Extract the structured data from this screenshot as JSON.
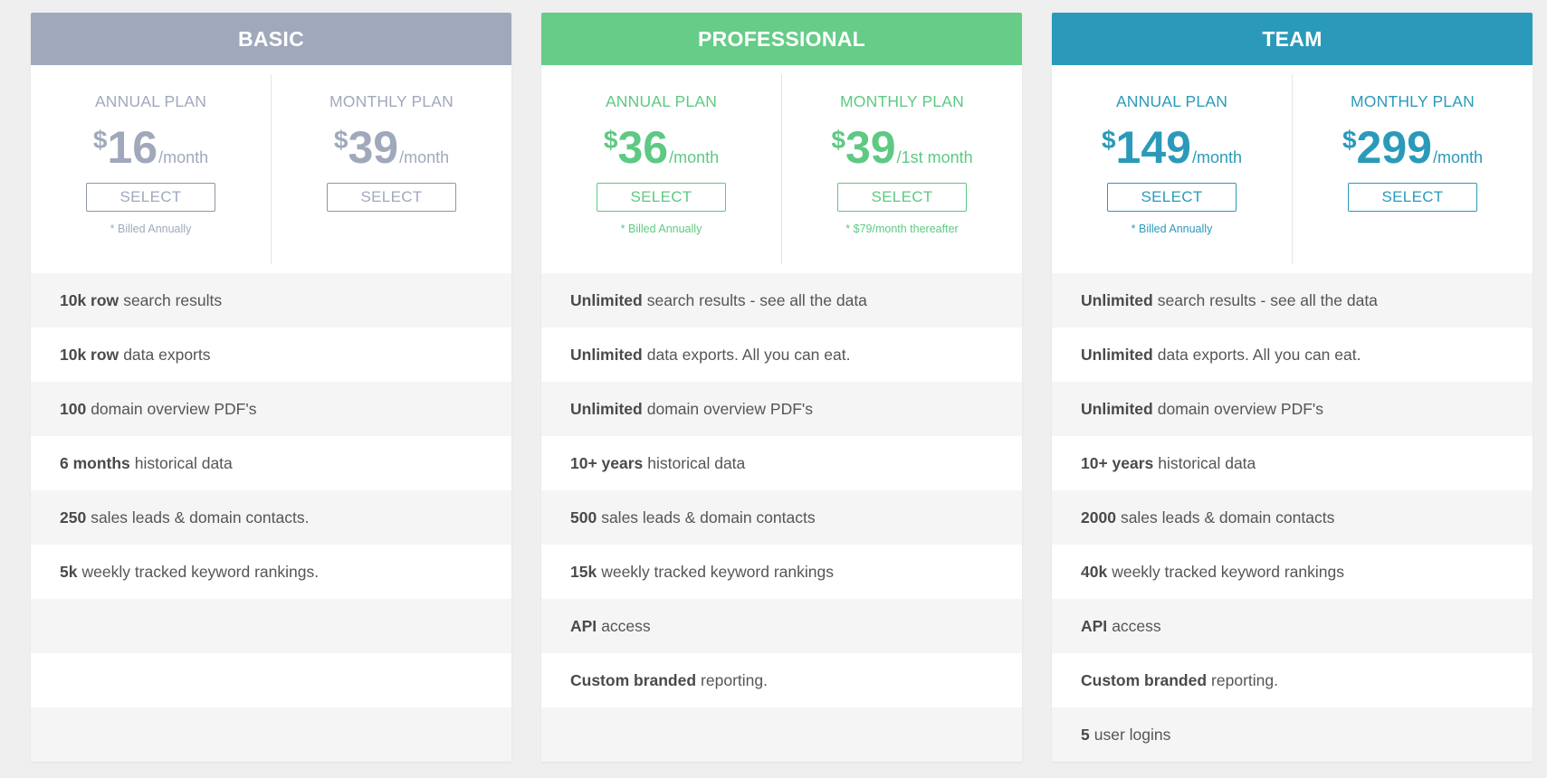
{
  "cards": [
    {
      "name": "BASIC",
      "plans": [
        {
          "title": "ANNUAL PLAN",
          "currency": "$",
          "amount": "16",
          "period": "/month",
          "button": "SELECT",
          "note": "* Billed Annually"
        },
        {
          "title": "MONTHLY PLAN",
          "currency": "$",
          "amount": "39",
          "period": "/month",
          "button": "SELECT",
          "note": ""
        }
      ],
      "features": [
        {
          "bold": "10k row",
          "text": "search results"
        },
        {
          "bold": "10k row",
          "text": "data exports"
        },
        {
          "bold": "100",
          "text": "domain overview PDF's"
        },
        {
          "bold": "6 months",
          "text": "historical data"
        },
        {
          "bold": "250",
          "text": "sales leads & domain contacts."
        },
        {
          "bold": "5k",
          "text": "weekly tracked keyword rankings."
        },
        {
          "bold": "",
          "text": ""
        },
        {
          "bold": "",
          "text": ""
        },
        {
          "bold": "",
          "text": ""
        }
      ]
    },
    {
      "name": "PROFESSIONAL",
      "plans": [
        {
          "title": "ANNUAL PLAN",
          "currency": "$",
          "amount": "36",
          "period": "/month",
          "button": "SELECT",
          "note": "* Billed Annually"
        },
        {
          "title": "MONTHLY PLAN",
          "currency": "$",
          "amount": "39",
          "period": "/1st month",
          "button": "SELECT",
          "note": "* $79/month thereafter"
        }
      ],
      "features": [
        {
          "bold": "Unlimited",
          "text": "search results - see all the data"
        },
        {
          "bold": "Unlimited",
          "text": "data exports. All you can eat."
        },
        {
          "bold": "Unlimited",
          "text": "domain overview PDF's"
        },
        {
          "bold": "10+ years",
          "text": "historical data"
        },
        {
          "bold": "500",
          "text": "sales leads & domain contacts"
        },
        {
          "bold": "15k",
          "text": "weekly tracked keyword rankings"
        },
        {
          "bold": "API",
          "text": "access"
        },
        {
          "bold": "Custom branded",
          "text": "reporting."
        },
        {
          "bold": "",
          "text": ""
        }
      ]
    },
    {
      "name": "TEAM",
      "plans": [
        {
          "title": "ANNUAL PLAN",
          "currency": "$",
          "amount": "149",
          "period": "/month",
          "button": "SELECT",
          "note": "* Billed Annually"
        },
        {
          "title": "MONTHLY PLAN",
          "currency": "$",
          "amount": "299",
          "period": "/month",
          "button": "SELECT",
          "note": ""
        }
      ],
      "features": [
        {
          "bold": "Unlimited",
          "text": "search results - see all the data"
        },
        {
          "bold": "Unlimited",
          "text": "data exports. All you can eat."
        },
        {
          "bold": "Unlimited",
          "text": "domain overview PDF's"
        },
        {
          "bold": "10+ years",
          "text": "historical data"
        },
        {
          "bold": "2000",
          "text": "sales leads & domain contacts"
        },
        {
          "bold": "40k",
          "text": "weekly tracked keyword rankings"
        },
        {
          "bold": "API",
          "text": "access"
        },
        {
          "bold": "Custom branded",
          "text": "reporting."
        },
        {
          "bold": "5",
          "text": "user logins"
        }
      ]
    }
  ],
  "colors": {
    "basic": "#a0a9bc",
    "professional": "#66cc88",
    "team": "#2b9aba",
    "background": "#efefef"
  }
}
